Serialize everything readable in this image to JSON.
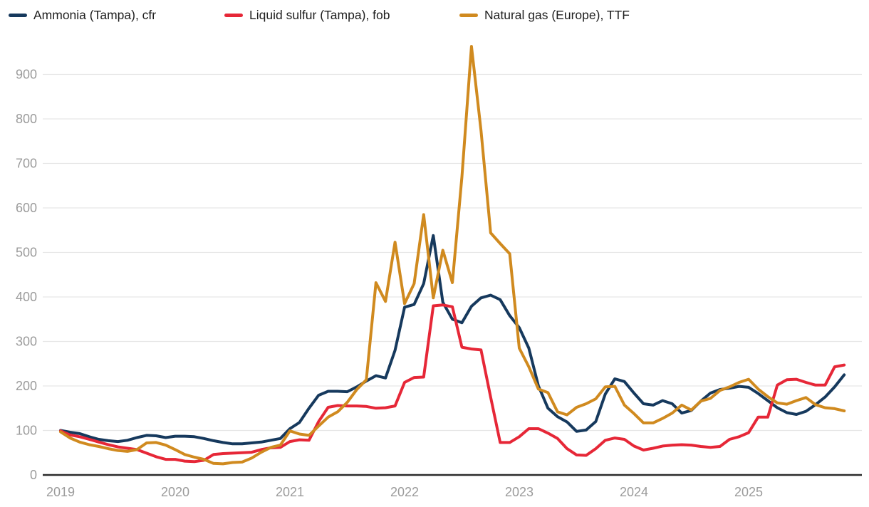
{
  "legend": {
    "items": [
      {
        "label": "Ammonia (Tampa), cfr",
        "color": "#16395d"
      },
      {
        "label": "Liquid sulfur (Tampa), fob",
        "color": "#e62737"
      },
      {
        "label": "Natural gas (Europe), TTF",
        "color": "#d08a1f"
      }
    ]
  },
  "chart_data": {
    "type": "line",
    "title": "",
    "x_start": "2019-01",
    "frequency": "monthly",
    "x_tick_labels": [
      "2019",
      "2020",
      "2021",
      "2022",
      "2023",
      "2024",
      "2025"
    ],
    "y_ticks": [
      0,
      100,
      200,
      300,
      400,
      500,
      600,
      700,
      800,
      900
    ],
    "ylim": [
      0,
      980
    ],
    "grid": "horizontal",
    "legend_position": "top-left",
    "grid_color": "#e6e6e6",
    "axis_color": "#2b2b2b",
    "tick_color": "#9b9b9b",
    "series": [
      {
        "name": "Ammonia (Tampa), cfr",
        "color": "#16395d",
        "values": [
          100,
          96,
          93,
          86,
          80,
          77,
          75,
          78,
          84,
          89,
          88,
          84,
          87,
          87,
          86,
          82,
          77,
          73,
          70,
          70,
          72,
          74,
          78,
          82,
          104,
          118,
          150,
          179,
          188,
          188,
          187,
          198,
          211,
          223,
          218,
          280,
          377,
          383,
          430,
          538,
          388,
          350,
          342,
          379,
          398,
          404,
          394,
          358,
          331,
          285,
          200,
          150,
          131,
          119,
          98,
          101,
          120,
          182,
          216,
          210,
          184,
          160,
          157,
          167,
          160,
          139,
          145,
          166,
          184,
          192,
          195,
          199,
          197,
          183,
          167,
          151,
          140,
          136,
          143,
          158,
          175,
          198,
          225
        ]
      },
      {
        "name": "Liquid sulfur (Tampa), fob",
        "color": "#e62737",
        "values": [
          99,
          90,
          86,
          80,
          74,
          68,
          63,
          60,
          57,
          49,
          41,
          35,
          35,
          31,
          30,
          33,
          46,
          48,
          49,
          50,
          51,
          57,
          61,
          62,
          75,
          79,
          78,
          120,
          152,
          156,
          155,
          155,
          154,
          150,
          151,
          155,
          208,
          219,
          220,
          380,
          382,
          378,
          287,
          283,
          281,
          175,
          73,
          73,
          86,
          104,
          104,
          94,
          82,
          59,
          45,
          44,
          59,
          78,
          83,
          80,
          65,
          56,
          60,
          65,
          67,
          68,
          67,
          64,
          62,
          64,
          80,
          86,
          95,
          130,
          130,
          202,
          214,
          215,
          208,
          202,
          202,
          243,
          247
        ]
      },
      {
        "name": "Natural gas (Europe), TTF",
        "color": "#d08a1f",
        "values": [
          97,
          83,
          74,
          68,
          64,
          59,
          55,
          53,
          57,
          72,
          73,
          67,
          57,
          46,
          40,
          35,
          26,
          25,
          28,
          29,
          38,
          51,
          62,
          67,
          99,
          92,
          89,
          110,
          130,
          142,
          163,
          192,
          214,
          432,
          390,
          523,
          385,
          430,
          585,
          398,
          505,
          432,
          670,
          963,
          774,
          544,
          520,
          497,
          285,
          243,
          193,
          185,
          142,
          135,
          152,
          160,
          171,
          198,
          199,
          157,
          138,
          117,
          117,
          127,
          139,
          157,
          146,
          166,
          172,
          190,
          198,
          208,
          215,
          193,
          176,
          162,
          159,
          167,
          174,
          158,
          151,
          149,
          144
        ]
      }
    ]
  }
}
